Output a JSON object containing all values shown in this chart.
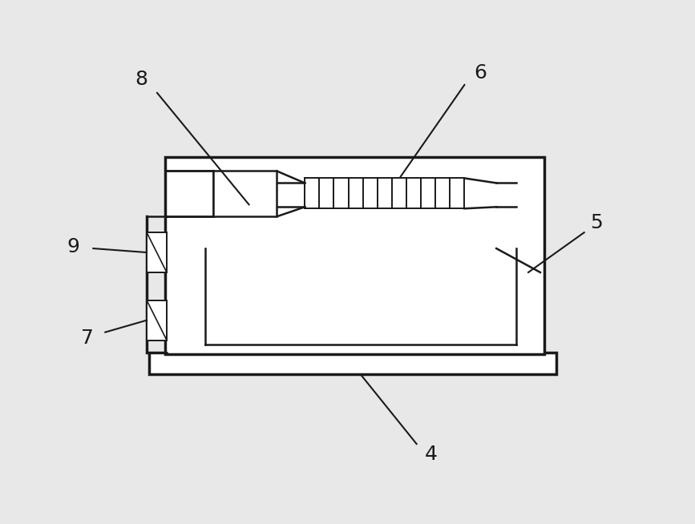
{
  "bg_color": "#e8e8e8",
  "line_color": "#1a1a1a",
  "lw_main": 2.5,
  "lw_inner": 1.8,
  "lw_detail": 1.4,
  "fig_width": 8.67,
  "fig_height": 6.54,
  "dpi": 100
}
